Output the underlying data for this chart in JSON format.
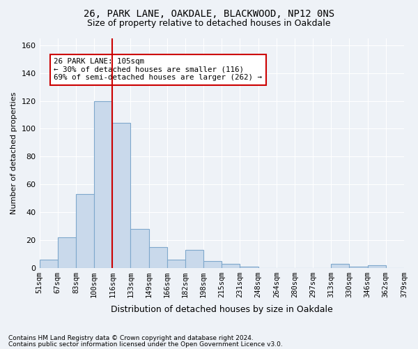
{
  "title_line1": "26, PARK LANE, OAKDALE, BLACKWOOD, NP12 0NS",
  "title_line2": "Size of property relative to detached houses in Oakdale",
  "xlabel": "Distribution of detached houses by size in Oakdale",
  "ylabel": "Number of detached properties",
  "tick_labels": [
    "51sqm",
    "67sqm",
    "83sqm",
    "100sqm",
    "116sqm",
    "133sqm",
    "149sqm",
    "166sqm",
    "182sqm",
    "198sqm",
    "215sqm",
    "231sqm",
    "248sqm",
    "264sqm",
    "280sqm",
    "297sqm",
    "313sqm",
    "330sqm",
    "346sqm",
    "362sqm",
    "379sqm"
  ],
  "values": [
    6,
    22,
    53,
    120,
    104,
    28,
    15,
    6,
    13,
    5,
    3,
    1,
    0,
    0,
    0,
    0,
    3,
    1,
    2,
    0
  ],
  "bar_color": "#c9d9eb",
  "bar_edge_color": "#7fa8cc",
  "vline_x": 3.5,
  "vline_color": "#cc0000",
  "annotation_text": "26 PARK LANE: 105sqm\n← 30% of detached houses are smaller (116)\n69% of semi-detached houses are larger (262) →",
  "annotation_box_color": "white",
  "annotation_box_edge": "#cc0000",
  "ylim": [
    0,
    165
  ],
  "yticks": [
    0,
    20,
    40,
    60,
    80,
    100,
    120,
    140,
    160
  ],
  "footnote1": "Contains HM Land Registry data © Crown copyright and database right 2024.",
  "footnote2": "Contains public sector information licensed under the Open Government Licence v3.0.",
  "background_color": "#eef2f7",
  "plot_background": "#eef2f7"
}
